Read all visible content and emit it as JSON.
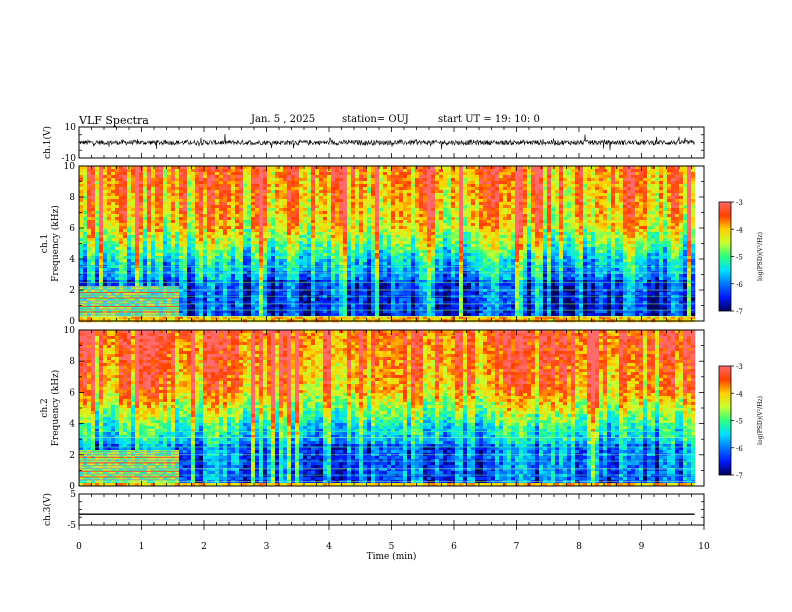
{
  "header": {
    "title": "VLF Spectra",
    "date": "Jan. 5 , 2025",
    "station": "station= OUJ",
    "start": "start UT = 19: 10: 0"
  },
  "chart_data": [
    {
      "type": "line",
      "name": "ch1-waveform",
      "ylabel": "ch.1(V)",
      "ylim": [
        -10,
        10
      ],
      "yticks": [
        "10",
        "-10"
      ],
      "xlim": [
        0,
        10
      ],
      "baseline": 0,
      "span_minutes": 9.85
    },
    {
      "type": "heatmap",
      "name": "ch1-spectrogram",
      "ylabel": "ch.1\nFrequency (kHz)",
      "ylim": [
        0,
        10
      ],
      "yticks": [
        "0",
        "2",
        "4",
        "6",
        "8",
        "10"
      ],
      "xlim": [
        0,
        10
      ],
      "data_end_minutes": 9.85,
      "change_time_minutes": 1.6,
      "colorbar": {
        "label": "log(PSD)(V²/Hz)",
        "range": [
          -7,
          -3
        ],
        "ticks": [
          "-3",
          "-4",
          "-5",
          "-6",
          "-7"
        ]
      }
    },
    {
      "type": "heatmap",
      "name": "ch2-spectrogram",
      "ylabel": "ch.2\nFrequency (kHz)",
      "ylim": [
        0,
        10
      ],
      "yticks": [
        "0",
        "2",
        "4",
        "6",
        "8",
        "10"
      ],
      "xlim": [
        0,
        10
      ],
      "data_end_minutes": 9.85,
      "change_time_minutes": 1.6,
      "colorbar": {
        "label": "log(PSD)(V²/Hz)",
        "range": [
          -7,
          -3
        ],
        "ticks": [
          "-3",
          "-4",
          "-5",
          "-6",
          "-7"
        ]
      }
    },
    {
      "type": "line",
      "name": "ch3-waveform",
      "ylabel": "ch.3(V)",
      "ylim": [
        -5,
        5
      ],
      "yticks": [
        "5",
        "-5"
      ],
      "xlim": [
        0,
        10
      ],
      "constant_value": -1.5,
      "span_minutes": 9.85
    }
  ],
  "xaxis": {
    "label": "Time (min)",
    "ticks": [
      "0",
      "1",
      "2",
      "3",
      "4",
      "5",
      "6",
      "7",
      "8",
      "9",
      "10"
    ]
  },
  "colors": {
    "colormap": [
      "#00005a",
      "#0018ff",
      "#0078ff",
      "#00e0ff",
      "#30ff80",
      "#c8ff30",
      "#ffd000",
      "#ff4000",
      "#ff6a6a"
    ]
  }
}
